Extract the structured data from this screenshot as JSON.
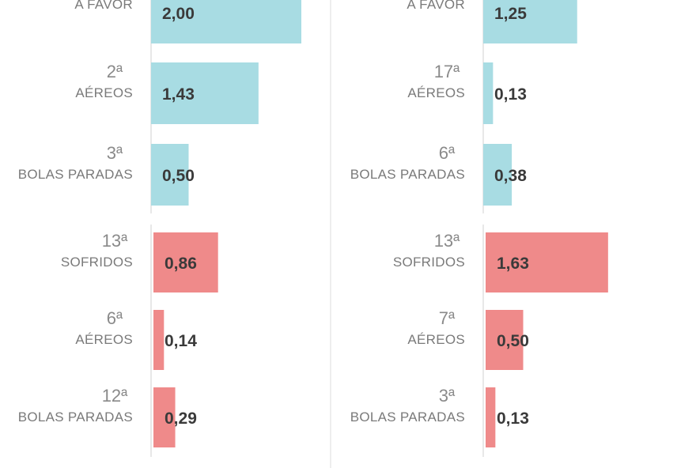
{
  "colors": {
    "for": "#a8dce3",
    "against": "#ef8a8a",
    "axis": "#e8e8e8",
    "divider": "#eeeeee"
  },
  "chart_data": [
    {
      "type": "bar",
      "orientation": "horizontal",
      "categories": [
        "A FAVOR",
        "AÉREOS",
        "BOLAS PARADAS",
        "SOFRIDOS",
        "AÉREOS",
        "BOLAS PARADAS"
      ],
      "ranks": [
        "",
        "2ª",
        "3ª",
        "13ª",
        "6ª",
        "12ª"
      ],
      "values": [
        2.0,
        1.43,
        0.5,
        0.86,
        0.14,
        0.29
      ],
      "value_labels": [
        "2,00",
        "1,43",
        "0,50",
        "0,86",
        "0,14",
        "0,29"
      ],
      "groups": [
        "for",
        "for",
        "for",
        "against",
        "against",
        "against"
      ],
      "xlim": [
        0,
        2.6
      ]
    },
    {
      "type": "bar",
      "orientation": "horizontal",
      "categories": [
        "A FAVOR",
        "AÉREOS",
        "BOLAS PARADAS",
        "SOFRIDOS",
        "AÉREOS",
        "BOLAS PARADAS"
      ],
      "ranks": [
        "",
        "17ª",
        "6ª",
        "13ª",
        "7ª",
        "3ª"
      ],
      "values": [
        1.25,
        0.13,
        0.38,
        1.63,
        0.5,
        0.13
      ],
      "value_labels": [
        "1,25",
        "0,13",
        "0,38",
        "1,63",
        "0,50",
        "0,13"
      ],
      "groups": [
        "for",
        "for",
        "for",
        "against",
        "against",
        "against"
      ],
      "xlim": [
        0,
        2.6
      ]
    }
  ]
}
